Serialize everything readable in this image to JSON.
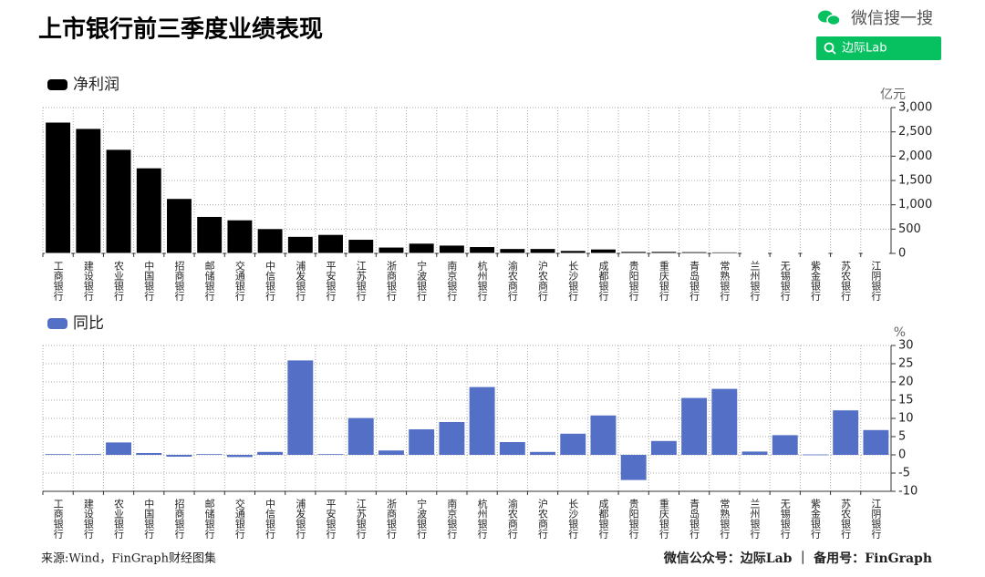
{
  "header": {
    "title": "上市银行前三季度业绩表现",
    "brand": "微信搜一搜",
    "search": "边际Lab"
  },
  "chart_data": [
    {
      "type": "bar",
      "y_axis_label": "亿元",
      "categories": [
        "工商银行",
        "建设银行",
        "农业银行",
        "中国银行",
        "招商银行",
        "邮储银行",
        "交通银行",
        "中信银行",
        "浦发银行",
        "平安银行",
        "江苏银行",
        "浙商银行",
        "宁波银行",
        "南京银行",
        "杭州银行",
        "渝农商行",
        "沪农商行",
        "长沙银行",
        "成都银行",
        "贵阳银行",
        "重庆银行",
        "青岛银行",
        "常熟银行",
        "兰州银行",
        "无锡银行",
        "紫金银行",
        "苏农银行",
        "江阴银行"
      ],
      "series": [
        {
          "name": "净利润",
          "color": "#000000",
          "values": [
            2700,
            2570,
            2140,
            1760,
            1130,
            760,
            690,
            510,
            350,
            390,
            290,
            130,
            210,
            170,
            140,
            100,
            100,
            60,
            90,
            40,
            40,
            35,
            30,
            15,
            15,
            15,
            15,
            15
          ]
        }
      ],
      "ylim": [
        0,
        3000
      ],
      "yticks": [
        0,
        500,
        {
          "value": 1000,
          "label": "1,000"
        },
        {
          "value": 1500,
          "label": "1,500"
        },
        {
          "value": 2000,
          "label": "2,000"
        },
        {
          "value": 2500,
          "label": "2,500"
        },
        {
          "value": 3000,
          "label": "3,000"
        }
      ],
      "grid": true
    },
    {
      "type": "bar",
      "y_axis_label": "%",
      "categories": [
        "工商银行",
        "建设银行",
        "农业银行",
        "中国银行",
        "招商银行",
        "邮储银行",
        "交通银行",
        "中信银行",
        "浦发银行",
        "平安银行",
        "江苏银行",
        "浙商银行",
        "宁波银行",
        "南京银行",
        "杭州银行",
        "渝农商行",
        "沪农商行",
        "长沙银行",
        "成都银行",
        "贵阳银行",
        "重庆银行",
        "青岛银行",
        "常熟银行",
        "兰州银行",
        "无锡银行",
        "紫金银行",
        "苏农银行",
        "江阴银行"
      ],
      "series": [
        {
          "name": "同比",
          "color": "#5470c6",
          "values": [
            0.2,
            0.2,
            3.4,
            0.5,
            -0.5,
            0.2,
            -0.6,
            0.8,
            25.9,
            0.2,
            10.1,
            1.2,
            7.0,
            9.0,
            18.6,
            3.5,
            0.8,
            5.8,
            10.8,
            -6.9,
            3.8,
            15.6,
            18.1,
            0.9,
            5.4,
            0.1,
            12.2,
            6.8
          ]
        }
      ],
      "ylim": [
        -10,
        30
      ],
      "yticks": [
        -10,
        -5,
        0,
        5,
        10,
        15,
        20,
        25,
        30
      ],
      "grid": true
    }
  ],
  "footer": {
    "source": "来源:Wind，FinGraph财经图集",
    "credit": "微信公众号：边际Lab ｜ 备用号：FinGraph"
  }
}
